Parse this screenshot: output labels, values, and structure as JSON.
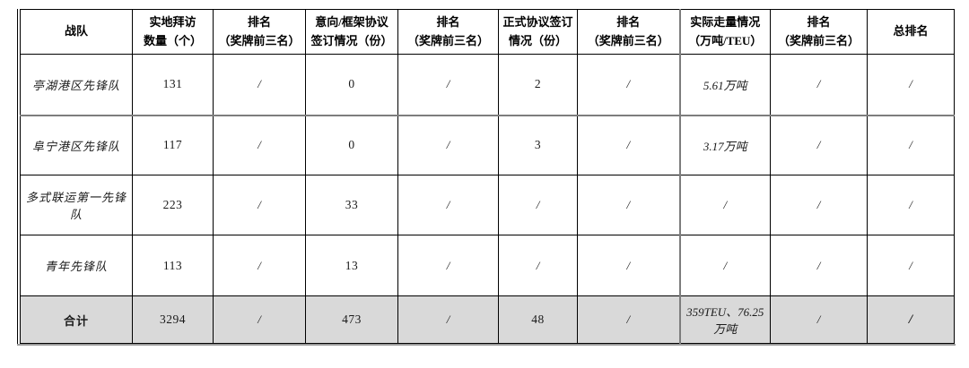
{
  "colors": {
    "border": "#000000",
    "thick_gridline": "#7d7d7d",
    "bottom_shadow": "#9a9a9a",
    "total_row_background": "#d9d9d9",
    "page_background": "#ffffff"
  },
  "table": {
    "headers": [
      {
        "lines": [
          "战队"
        ]
      },
      {
        "lines": [
          "实地拜访",
          "数量（个）"
        ]
      },
      {
        "lines": [
          "排名",
          "（奖牌前三名）"
        ]
      },
      {
        "lines": [
          "意向/框架协议",
          "签订情况（份）"
        ]
      },
      {
        "lines": [
          "排名",
          "（奖牌前三名）"
        ]
      },
      {
        "lines": [
          "正式协议签订",
          "情况（份）"
        ]
      },
      {
        "lines": [
          "排名",
          "（奖牌前三名）"
        ]
      },
      {
        "lines": [
          "实际走量情况",
          "（万吨/TEU）"
        ]
      },
      {
        "lines": [
          "排名",
          "（奖牌前三名）"
        ]
      },
      {
        "lines": [
          "总排名"
        ]
      }
    ],
    "rows": [
      {
        "cells": [
          "亭湖港区先锋队",
          "131",
          "/",
          "0",
          "/",
          "2",
          "/",
          "5.61万吨",
          "/",
          "/"
        ]
      },
      {
        "cells": [
          "阜宁港区先锋队",
          "117",
          "/",
          "0",
          "/",
          "3",
          "/",
          "3.17万吨",
          "/",
          "/"
        ]
      },
      {
        "cells": [
          "多式联运第一先锋队",
          "223",
          "/",
          "33",
          "/",
          "/",
          "/",
          "/",
          "/",
          "/"
        ]
      },
      {
        "cells": [
          "青年先锋队",
          "113",
          "/",
          "13",
          "/",
          "/",
          "/",
          "/",
          "/",
          "/"
        ]
      }
    ],
    "total_row": {
      "cells": [
        "合计",
        "3294",
        "/",
        "473",
        "/",
        "48",
        "/",
        "359TEU、76.25万吨",
        "/",
        "/"
      ]
    }
  }
}
